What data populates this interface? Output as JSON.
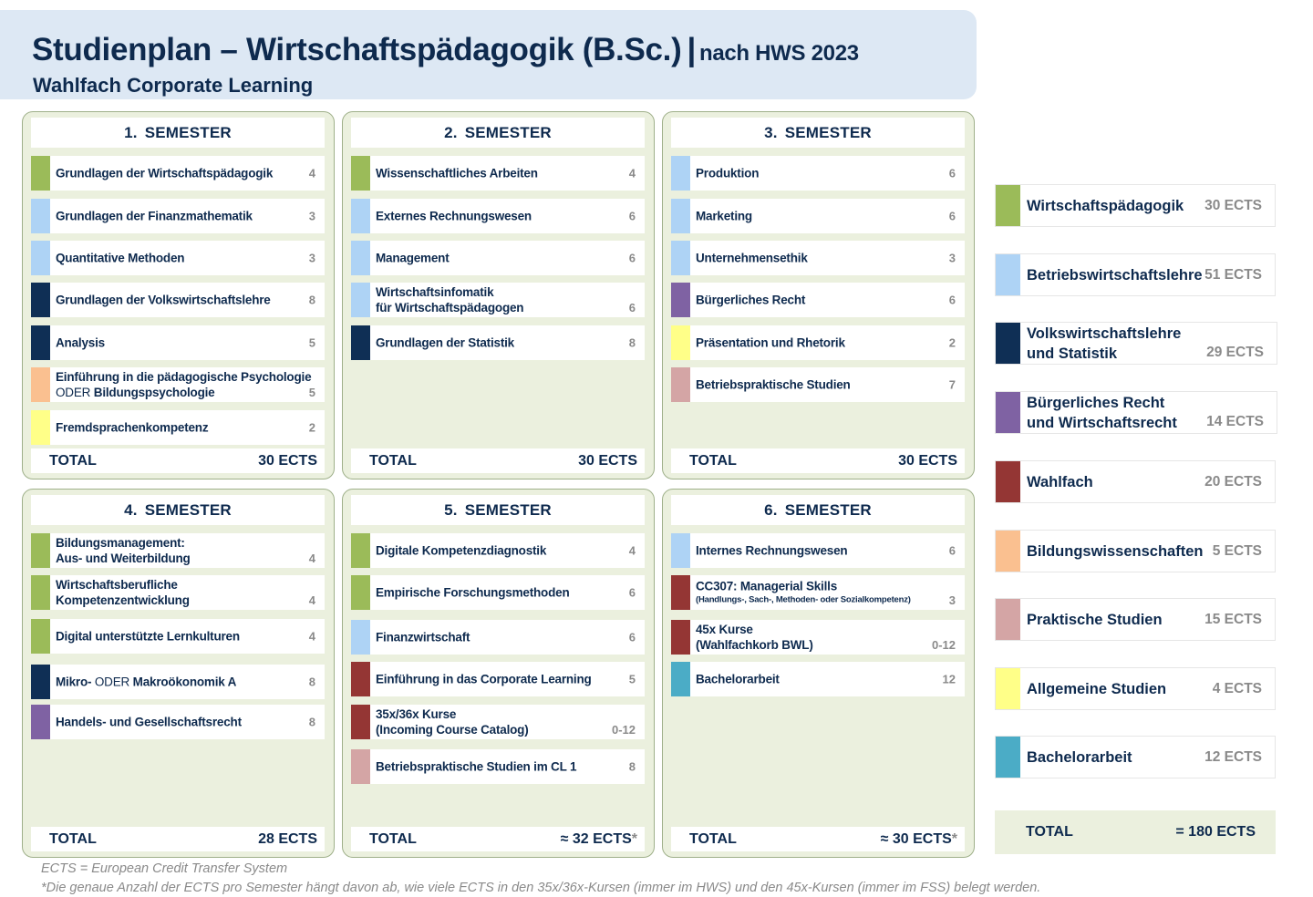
{
  "header": {
    "title": "Studienplan – Wirtschaftspädagogik (B.Sc.)",
    "separator": "|",
    "title_suffix": "nach HWS 2023",
    "subtitle": "Wahlfach Corporate Learning"
  },
  "colors": {
    "wirtschaftspaedagogik": "#9bbb59",
    "bwl": "#aed3f5",
    "vwl": "#0f2f55",
    "recht": "#7f62a3",
    "wahlfach": "#943634",
    "bildung": "#fac090",
    "praktisch": "#d4a5a5",
    "allgemein": "#ffff88",
    "bachelor": "#4bacc6"
  },
  "semesters": [
    {
      "number": "1.",
      "label": "SEMESTER",
      "courses": [
        {
          "line1": "Grundlagen der Wirtschaftspädagogik",
          "ects": "4",
          "color": "#9bbb59"
        },
        {
          "line1": "Grundlagen der Finanzmathematik",
          "ects": "3",
          "color": "#aed3f5"
        },
        {
          "line1": "Quantitative Methoden",
          "ects": "3",
          "color": "#aed3f5"
        },
        {
          "line1": "Grundlagen der Volkswirtschaftslehre",
          "ects": "8",
          "color": "#0f2f55"
        },
        {
          "line1": "Analysis",
          "ects": "5",
          "color": "#0f2f55"
        },
        {
          "line1": "Einführung in die pädagogische Psychologie",
          "or": "ODER",
          "line2": "Bildungspsychologie",
          "ects": "5",
          "color": "#fac090"
        },
        {
          "line1": "Fremdsprachenkompetenz",
          "ects": "2",
          "color": "#ffff88"
        }
      ],
      "total_label": "TOTAL",
      "total_value": "30 ECTS"
    },
    {
      "number": "2.",
      "label": "SEMESTER",
      "courses": [
        {
          "line1": "Wissenschaftliches Arbeiten",
          "ects": "4",
          "color": "#9bbb59"
        },
        {
          "line1": "Externes Rechnungswesen",
          "ects": "6",
          "color": "#aed3f5"
        },
        {
          "line1": "Management",
          "ects": "6",
          "color": "#aed3f5"
        },
        {
          "line1": "Wirtschaftsinfomatik",
          "line2": "für Wirtschaftspädagogen",
          "ects": "6",
          "color": "#aed3f5"
        },
        {
          "line1": "Grundlagen der Statistik",
          "ects": "8",
          "color": "#0f2f55"
        }
      ],
      "total_label": "TOTAL",
      "total_value": "30 ECTS"
    },
    {
      "number": "3.",
      "label": "SEMESTER",
      "courses": [
        {
          "line1": "Produktion",
          "ects": "6",
          "color": "#aed3f5"
        },
        {
          "line1": "Marketing",
          "ects": "6",
          "color": "#aed3f5"
        },
        {
          "line1": "Unternehmensethik",
          "ects": "3",
          "color": "#aed3f5"
        },
        {
          "line1": "Bürgerliches Recht",
          "ects": "6",
          "color": "#7f62a3"
        },
        {
          "line1": "Präsentation und Rhetorik",
          "ects": "2",
          "color": "#ffff88"
        },
        {
          "line1": "Betriebspraktische Studien",
          "ects": "7",
          "color": "#d4a5a5"
        }
      ],
      "total_label": "TOTAL",
      "total_value": "30 ECTS"
    },
    {
      "number": "4.",
      "label": "SEMESTER",
      "courses": [
        {
          "line1": "Bildungsmanagement:",
          "line2": "Aus- und Weiterbildung",
          "ects": "4",
          "color": "#9bbb59"
        },
        {
          "line1": "Wirtschaftsberufliche",
          "line2": "Kompetenzentwicklung",
          "ects": "4",
          "color": "#9bbb59"
        },
        {
          "line1": "Digital unterstützte Lernkulturen",
          "ects": "4",
          "color": "#9bbb59"
        },
        {
          "line1": "Mikro-",
          "or": "ODER",
          "line1b": "Makroökonomik A",
          "ects": "8",
          "color": "#0f2f55"
        },
        {
          "line1": "Handels- und Gesellschaftsrecht",
          "ects": "8",
          "color": "#7f62a3"
        }
      ],
      "total_label": "TOTAL",
      "total_value": "28 ECTS"
    },
    {
      "number": "5.",
      "label": "SEMESTER",
      "courses": [
        {
          "line1": "Digitale Kompetenzdiagnostik",
          "ects": "4",
          "color": "#9bbb59"
        },
        {
          "line1": "Empirische Forschungsmethoden",
          "ects": "6",
          "color": "#9bbb59"
        },
        {
          "line1": "Finanzwirtschaft",
          "ects": "6",
          "color": "#aed3f5"
        },
        {
          "line1": "Einführung in das Corporate Learning",
          "ects": "5",
          "color": "#943634"
        },
        {
          "line1": "35x/36x Kurse",
          "line2": "(Incoming Course Catalog)",
          "ects": "0-12",
          "color": "#943634"
        },
        {
          "line1": "Betriebspraktische Studien im CL 1",
          "ects": "8",
          "color": "#d4a5a5"
        }
      ],
      "total_label": "TOTAL",
      "total_value": "≈ 32 ECTS",
      "total_star": "*"
    },
    {
      "number": "6.",
      "label": "SEMESTER",
      "courses": [
        {
          "line1": "Internes Rechnungswesen",
          "ects": "6",
          "color": "#aed3f5"
        },
        {
          "line1": "CC307: Managerial Skills",
          "small": "(Handlungs-, Sach-, Methoden- oder Sozialkompetenz)",
          "ects": "3",
          "color": "#943634"
        },
        {
          "line1": "45x Kurse",
          "line2": "(Wahlfachkorb BWL)",
          "ects": "0-12",
          "color": "#943634"
        },
        {
          "line1": "Bachelorarbeit",
          "ects": "12",
          "color": "#4bacc6"
        }
      ],
      "total_label": "TOTAL",
      "total_value": "≈ 30 ECTS",
      "total_star": "*"
    }
  ],
  "legend": [
    {
      "name": "Wirtschaftspädagogik",
      "ects": "30 ECTS",
      "color": "#9bbb59"
    },
    {
      "name": "Betriebswirtschaftslehre",
      "ects": "51 ECTS",
      "color": "#aed3f5"
    },
    {
      "name": "Volkswirtschaftslehre",
      "name2": "und Statistik",
      "ects": "29 ECTS",
      "color": "#0f2f55"
    },
    {
      "name": "Bürgerliches Recht",
      "name2": "und Wirtschaftsrecht",
      "ects": "14 ECTS",
      "color": "#7f62a3"
    },
    {
      "name": "Wahlfach",
      "ects": "20 ECTS",
      "color": "#943634"
    },
    {
      "name": "Bildungswissenschaften",
      "ects": "5 ECTS",
      "color": "#fac090"
    },
    {
      "name": "Praktische Studien",
      "ects": "15 ECTS",
      "color": "#d4a5a5"
    },
    {
      "name": "Allgemeine Studien",
      "ects": "4 ECTS",
      "color": "#ffff88"
    },
    {
      "name": "Bachelorarbeit",
      "ects": "12 ECTS",
      "color": "#4bacc6"
    }
  ],
  "legend_total": {
    "label": "TOTAL",
    "value": "=  180 ECTS"
  },
  "footnotes": [
    "ECTS = European Credit Transfer System",
    "*Die genaue Anzahl der ECTS pro Semester hängt davon ab, wie viele ECTS in den 35x/36x-Kursen (immer im HWS) und den 45x-Kursen (immer im FSS) belegt werden."
  ]
}
